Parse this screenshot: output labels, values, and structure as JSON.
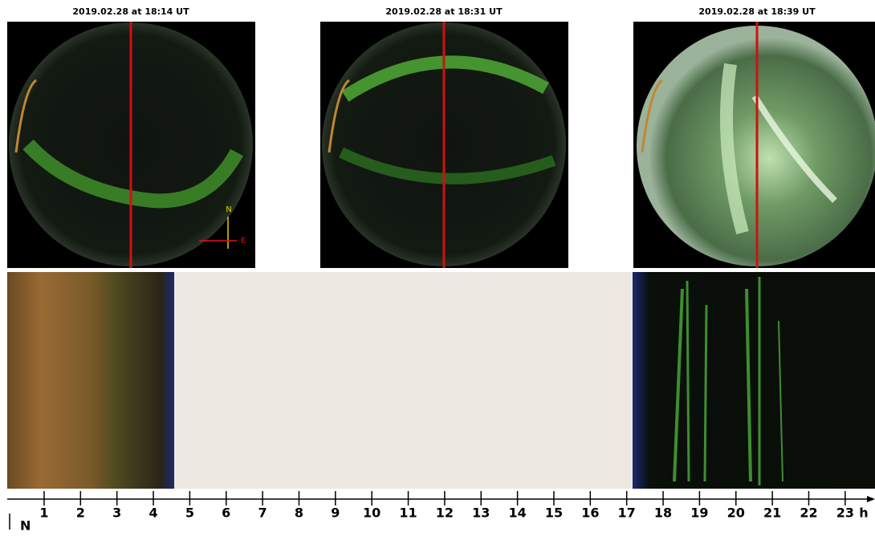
{
  "panels": [
    {
      "title": "2019.02.28 at 18:14 UT"
    },
    {
      "title": "2019.02.28 at 18:31 UT"
    },
    {
      "title": "2019.02.28 at 18:39 UT"
    }
  ],
  "compass": {
    "north": "N",
    "east": "E"
  },
  "time_axis": {
    "lim": [
      0,
      24
    ],
    "ticks": [
      1,
      2,
      3,
      4,
      5,
      6,
      7,
      8,
      9,
      10,
      11,
      12,
      13,
      14,
      15,
      16,
      17,
      18,
      19,
      20,
      21,
      22,
      23
    ],
    "unit": "h",
    "direction": "N"
  }
}
